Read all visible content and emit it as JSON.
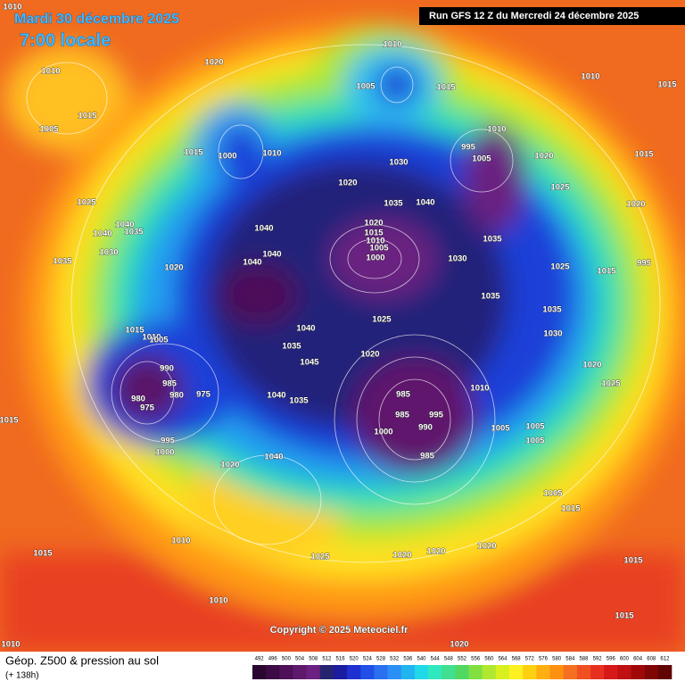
{
  "header": {
    "title": "Mardi 30 décembre 2025",
    "subtitle": "7:00 locale",
    "run": "Run GFS 12 Z du Mercredi 24 décembre 2025"
  },
  "pressure_labels": [
    "1010",
    "1010",
    "1015",
    "1005",
    "1020",
    "1010",
    "1005",
    "1015",
    "1010",
    "1015",
    "1015",
    "1000",
    "1010",
    "1030",
    "1020",
    "995",
    "1010",
    "1005",
    "1020",
    "1025",
    "1015",
    "1020",
    "1025",
    "1040",
    "1035",
    "1040",
    "1030",
    "1035",
    "1020",
    "1040",
    "1040",
    "1040",
    "1035",
    "1040",
    "1020",
    "1015",
    "1010",
    "1005",
    "1000",
    "1030",
    "1035",
    "1025",
    "1015",
    "995",
    "1035",
    "1035",
    "1030",
    "1025",
    "1040",
    "1015",
    "1010",
    "1005",
    "1035",
    "1045",
    "1020",
    "990",
    "985",
    "980",
    "975",
    "980",
    "975",
    "1040",
    "1035",
    "985",
    "985",
    "995",
    "990",
    "1000",
    "985",
    "1010",
    "1005",
    "1005",
    "1005",
    "1020",
    "1025",
    "995",
    "1000",
    "1020",
    "1040",
    "1005",
    "1015",
    "1015",
    "1015",
    "1010",
    "1025",
    "1020",
    "1020",
    "1020",
    "1015",
    "1010",
    "1015",
    "1010",
    "1020"
  ],
  "copyright": "Copyright © 2025 Meteociel.fr",
  "footer": {
    "caption": "Géop. Z500 & pression au sol",
    "lead": "(+ 138h)"
  },
  "legend": {
    "levels": [
      492,
      496,
      500,
      504,
      508,
      512,
      516,
      520,
      524,
      528,
      532,
      536,
      540,
      544,
      548,
      552,
      556,
      560,
      564,
      568,
      572,
      576,
      580,
      584,
      588,
      592,
      596,
      600,
      604,
      608,
      612
    ],
    "colors": [
      "#2a0630",
      "#3c0a44",
      "#4e1058",
      "#5e186c",
      "#6c2080",
      "#262470",
      "#1c1ca0",
      "#1e30d0",
      "#2050e8",
      "#2a70f0",
      "#2a90f5",
      "#20b4f0",
      "#20d8e8",
      "#30e8c0",
      "#40e090",
      "#50d860",
      "#80e040",
      "#b0e830",
      "#d8f020",
      "#fff020",
      "#ffd010",
      "#ffb010",
      "#ff9010",
      "#f57020",
      "#f05020",
      "#e83020",
      "#d81818",
      "#c01010",
      "#a00808",
      "#800606",
      "#600404"
    ]
  }
}
